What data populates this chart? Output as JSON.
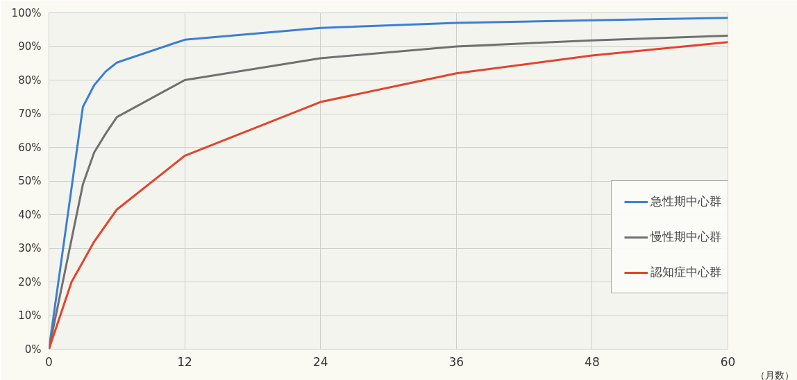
{
  "chart_data": {
    "type": "line",
    "xlabel": "（月数）",
    "x": [
      0,
      3,
      4,
      5,
      6,
      12,
      24,
      36,
      48,
      60
    ],
    "series": [
      {
        "name": "急性期中心群",
        "color": "#3b7fd4",
        "values": [
          0,
          72,
          78.5,
          82.5,
          85.2,
          92,
          95.5,
          97,
          97.8,
          98.5
        ]
      },
      {
        "name": "慢性期中心群",
        "color": "#707070",
        "values": [
          0,
          49,
          58.5,
          64,
          69,
          80,
          86.5,
          90,
          91.8,
          93.2
        ]
      },
      {
        "name": "認知症中心群",
        "color": "#e4432a",
        "x": [
          0,
          2,
          3,
          4,
          6,
          12,
          24,
          36,
          48,
          60
        ],
        "values": [
          0,
          20,
          26,
          32,
          41.5,
          57.5,
          73.5,
          82,
          87.3,
          91.3
        ]
      }
    ],
    "xlim": [
      0,
      60
    ],
    "ylim": [
      0,
      100
    ],
    "xticks": [
      0,
      12,
      24,
      36,
      48,
      60
    ],
    "yticks": [
      {
        "value": 0,
        "label": "0%"
      },
      {
        "value": 10,
        "label": "10%"
      },
      {
        "value": 20,
        "label": "20%"
      },
      {
        "value": 30,
        "label": "30%"
      },
      {
        "value": 40,
        "label": "40%"
      },
      {
        "value": 50,
        "label": "50%"
      },
      {
        "value": 60,
        "label": "60%"
      },
      {
        "value": 70,
        "label": "70%"
      },
      {
        "value": 80,
        "label": "80%"
      },
      {
        "value": 90,
        "label": "90%"
      },
      {
        "value": 100,
        "label": "100%"
      }
    ],
    "grid": true,
    "legend": "right",
    "marker": "none",
    "line_style": "solid"
  }
}
